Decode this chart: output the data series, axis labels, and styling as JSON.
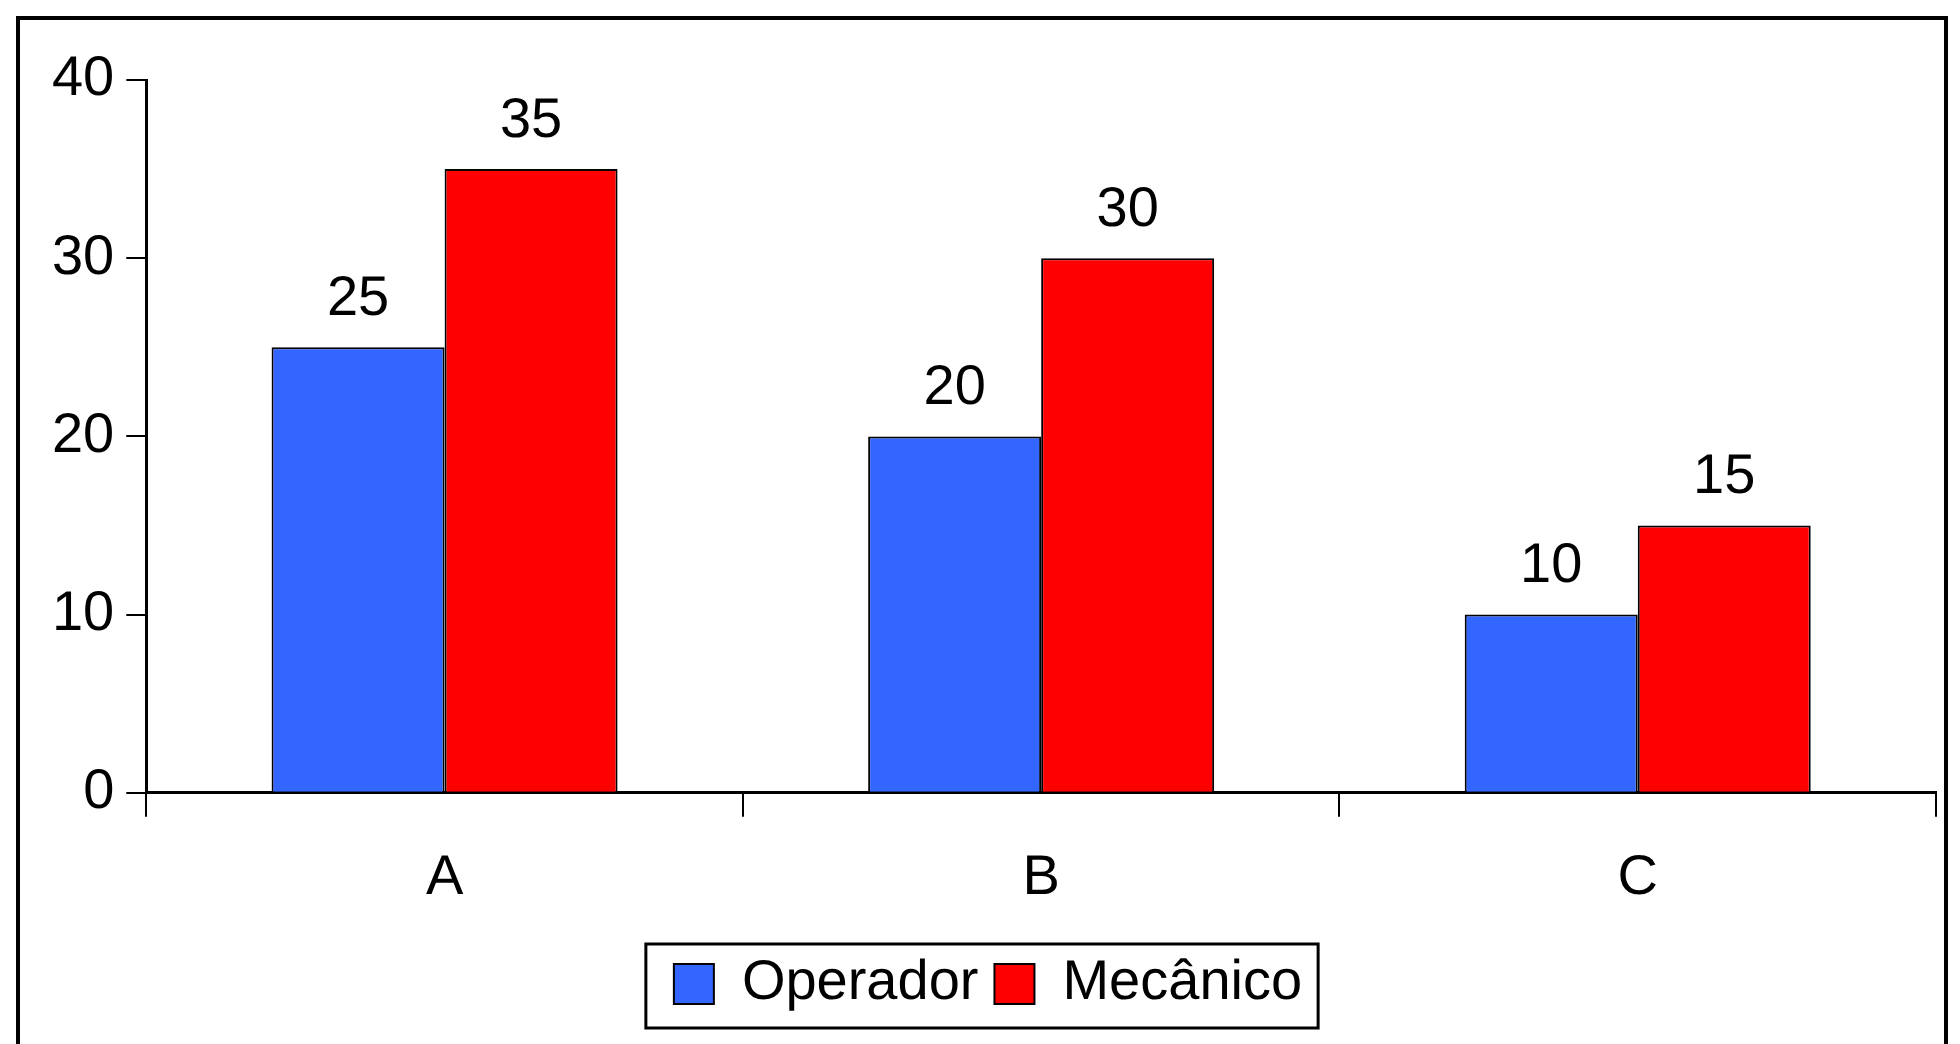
{
  "chart_data": {
    "type": "bar",
    "categories": [
      "A",
      "B",
      "C"
    ],
    "series": [
      {
        "name": "Operador",
        "color": "#3366ff",
        "values": [
          25,
          20,
          10
        ]
      },
      {
        "name": "Mecânico",
        "color": "#ff0000",
        "values": [
          35,
          30,
          15
        ]
      }
    ],
    "ylim": [
      0,
      40
    ],
    "yticks": [
      0,
      10,
      20,
      30,
      40
    ],
    "data_labels": true,
    "legend": "bottom"
  }
}
